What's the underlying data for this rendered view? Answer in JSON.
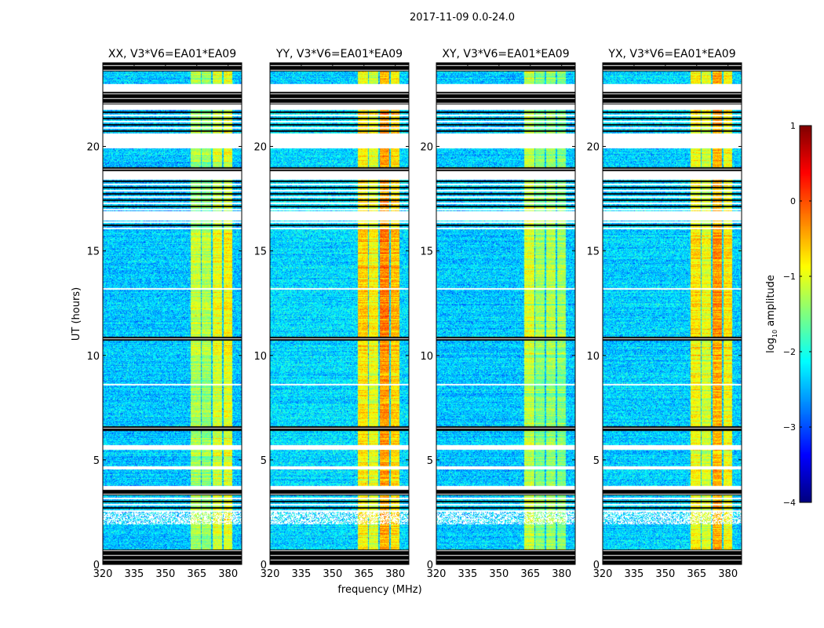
{
  "chart_data": {
    "type": "heatmap",
    "title": "2017-11-09 0.0-24.0",
    "xlabel": "frequency (MHz)",
    "ylabel": "UT (hours)",
    "xlim": [
      320,
      386.5
    ],
    "ylim": [
      0,
      24
    ],
    "xticks": [
      320,
      335,
      350,
      365,
      380
    ],
    "yticks": [
      0,
      5,
      10,
      15,
      20
    ],
    "colorbar": {
      "label": "log10 amplitude",
      "label_base": "log",
      "label_sub": "10",
      "label_rest": " amplitude",
      "range": [
        -4,
        1
      ],
      "ticks": [
        1,
        0,
        -1,
        -2,
        -3,
        -4
      ],
      "colormap": "jet"
    },
    "panels": [
      {
        "title": "XX, V3*V6=EA01*EA09",
        "background_level": -2.4,
        "band_levels": [
          -1.3,
          -1.4,
          -1.1,
          -1.0
        ]
      },
      {
        "title": "YY, V3*V6=EA01*EA09",
        "background_level": -2.3,
        "band_levels": [
          -0.8,
          -1.0,
          -0.4,
          -0.7
        ]
      },
      {
        "title": "XY, V3*V6=EA01*EA09",
        "background_level": -2.4,
        "band_levels": [
          -1.2,
          -1.5,
          -1.4,
          -1.5
        ]
      },
      {
        "title": "YX, V3*V6=EA01*EA09",
        "background_level": -2.35,
        "band_levels": [
          -0.9,
          -1.1,
          -0.5,
          -0.9
        ]
      }
    ],
    "rfi_bands_mhz": [
      [
        362,
        367
      ],
      [
        367.5,
        372
      ],
      [
        372.5,
        377
      ],
      [
        378,
        382
      ]
    ],
    "time_segments_hours": [
      {
        "from": 0,
        "to": 0.7,
        "state": "flagged"
      },
      {
        "from": 1.9,
        "to": 2.5,
        "state": "sparse"
      },
      {
        "from": 2.5,
        "to": 3.2,
        "state": "striped"
      },
      {
        "from": 3.3,
        "to": 3.6,
        "state": "flagged"
      },
      {
        "from": 3.6,
        "to": 3.75,
        "state": "blank"
      },
      {
        "from": 4.55,
        "to": 4.7,
        "state": "blank"
      },
      {
        "from": 5.5,
        "to": 5.7,
        "state": "blank"
      },
      {
        "from": 6.4,
        "to": 6.6,
        "state": "flagged"
      },
      {
        "from": 8.55,
        "to": 8.65,
        "state": "blank"
      },
      {
        "from": 10.7,
        "to": 10.9,
        "state": "flagged"
      },
      {
        "from": 13.15,
        "to": 13.22,
        "state": "blank"
      },
      {
        "from": 16.0,
        "to": 16.45,
        "state": "striped"
      },
      {
        "from": 16.45,
        "to": 16.9,
        "state": "blank"
      },
      {
        "from": 16.9,
        "to": 18.4,
        "state": "striped"
      },
      {
        "from": 18.4,
        "to": 18.8,
        "state": "blank"
      },
      {
        "from": 18.8,
        "to": 19.0,
        "state": "flagged"
      },
      {
        "from": 19.9,
        "to": 20.6,
        "state": "blank"
      },
      {
        "from": 20.6,
        "to": 21.8,
        "state": "striped"
      },
      {
        "from": 21.8,
        "to": 22.0,
        "state": "blank"
      },
      {
        "from": 22.0,
        "to": 22.6,
        "state": "flagged"
      },
      {
        "from": 22.6,
        "to": 23.0,
        "state": "blank"
      },
      {
        "from": 23.6,
        "to": 24.0,
        "state": "flagged"
      }
    ]
  }
}
